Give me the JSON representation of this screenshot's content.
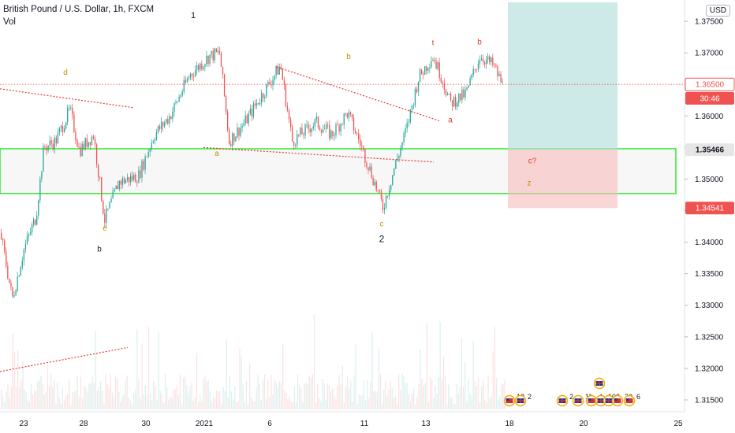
{
  "header": {
    "title": "British Pound / U.S. Dollar, 1h, FXCM",
    "indicator": "Vol",
    "currency_button": "USD"
  },
  "colors": {
    "up": "#26a69a",
    "down": "#ef5350",
    "zone": "#00e600",
    "target": "#b2dfdb",
    "stop": "#f8bbbb",
    "trend": "#e53935"
  },
  "chart_data": {
    "type": "candlestick",
    "title": "British Pound / U.S. Dollar, 1h, FXCM",
    "ylim": [
      1.3135,
      1.378
    ],
    "y_ticks": [
      "1.37500",
      "1.37000",
      "1.36500",
      "1.36000",
      "1.35500",
      "1.35000",
      "1.34500",
      "1.34000",
      "1.33500",
      "1.33000",
      "1.32500",
      "1.32000",
      "1.31500"
    ],
    "x_ticks": [
      "23",
      "28",
      "30",
      "2021",
      "6",
      "11",
      "13",
      "18",
      "20",
      "25"
    ],
    "price_badges": [
      {
        "label": "1.36500",
        "price": 1.365,
        "style": "outline"
      },
      {
        "label": "30:46",
        "price": 1.3628,
        "style": "filled"
      },
      {
        "label": "1.35466",
        "price": 1.35466,
        "style": "gray"
      },
      {
        "label": "1.34541",
        "price": 1.34541,
        "style": "filled"
      }
    ],
    "price_path": [
      {
        "x": 0,
        "y": 1.3415
      },
      {
        "x": 15,
        "y": 1.331
      },
      {
        "x": 30,
        "y": 1.339
      },
      {
        "x": 45,
        "y": 1.344
      },
      {
        "x": 55,
        "y": 1.355
      },
      {
        "x": 70,
        "y": 1.356
      },
      {
        "x": 88,
        "y": 1.361
      },
      {
        "x": 100,
        "y": 1.3545
      },
      {
        "x": 118,
        "y": 1.357
      },
      {
        "x": 132,
        "y": 1.3435
      },
      {
        "x": 150,
        "y": 1.3495
      },
      {
        "x": 175,
        "y": 1.3505
      },
      {
        "x": 195,
        "y": 1.357
      },
      {
        "x": 215,
        "y": 1.36
      },
      {
        "x": 240,
        "y": 1.3665
      },
      {
        "x": 265,
        "y": 1.3695
      },
      {
        "x": 278,
        "y": 1.37
      },
      {
        "x": 290,
        "y": 1.356
      },
      {
        "x": 310,
        "y": 1.359
      },
      {
        "x": 335,
        "y": 1.364
      },
      {
        "x": 355,
        "y": 1.368
      },
      {
        "x": 370,
        "y": 1.356
      },
      {
        "x": 400,
        "y": 1.359
      },
      {
        "x": 420,
        "y": 1.357
      },
      {
        "x": 440,
        "y": 1.3605
      },
      {
        "x": 455,
        "y": 1.356
      },
      {
        "x": 470,
        "y": 1.351
      },
      {
        "x": 485,
        "y": 1.3455
      },
      {
        "x": 500,
        "y": 1.352
      },
      {
        "x": 515,
        "y": 1.358
      },
      {
        "x": 530,
        "y": 1.366
      },
      {
        "x": 548,
        "y": 1.3695
      },
      {
        "x": 560,
        "y": 1.366
      },
      {
        "x": 570,
        "y": 1.362
      },
      {
        "x": 590,
        "y": 1.3635
      },
      {
        "x": 608,
        "y": 1.3695
      },
      {
        "x": 625,
        "y": 1.368
      },
      {
        "x": 638,
        "y": 1.3645
      }
    ],
    "zone": {
      "x_start": 0,
      "x_end": 857,
      "low": 1.3477,
      "high": 1.3548
    },
    "target_box": {
      "x_start": 644,
      "x_end": 783,
      "low": 1.3547,
      "high": 1.378
    },
    "stop_box": {
      "x_start": 644,
      "x_end": 783,
      "low": 1.3454,
      "high": 1.3547
    },
    "trendlines": [
      {
        "x1": 0,
        "y1": 1.3643,
        "x2": 170,
        "y2": 1.3613
      },
      {
        "x1": 258,
        "y1": 1.355,
        "x2": 550,
        "y2": 1.3527
      },
      {
        "x1": 350,
        "y1": 1.3678,
        "x2": 558,
        "y2": 1.3592
      },
      {
        "x1": 0,
        "y1": 1.3195,
        "x2": 162,
        "y2": 1.3233
      }
    ],
    "current_price_line": 1.365,
    "wave_labels": [
      {
        "text": "1",
        "x": 245,
        "y": 1.3755,
        "color": "#131722",
        "size": 11
      },
      {
        "text": "d",
        "x": 83,
        "y": 1.3665,
        "color": "#c59100",
        "size": 10
      },
      {
        "text": "b",
        "x": 442,
        "y": 1.369,
        "color": "#c59100",
        "size": 10
      },
      {
        "text": "a",
        "x": 275,
        "y": 1.3537,
        "color": "#c59100",
        "size": 10
      },
      {
        "text": "e",
        "x": 133,
        "y": 1.3418,
        "color": "#c59100",
        "size": 10
      },
      {
        "text": "b",
        "x": 126,
        "y": 1.3385,
        "color": "#131722",
        "size": 10
      },
      {
        "text": "c",
        "x": 484,
        "y": 1.3425,
        "color": "#c59100",
        "size": 10
      },
      {
        "text": "2",
        "x": 484,
        "y": 1.34,
        "color": "#131722",
        "size": 12
      },
      {
        "text": "t",
        "x": 549,
        "y": 1.3712,
        "color": "#e53935",
        "size": 10
      },
      {
        "text": "b",
        "x": 608,
        "y": 1.3713,
        "color": "#e53935",
        "size": 10
      },
      {
        "text": "a",
        "x": 571,
        "y": 1.359,
        "color": "#e53935",
        "size": 10
      },
      {
        "text": "c?",
        "x": 675,
        "y": 1.3525,
        "color": "#e53935",
        "size": 10
      },
      {
        "text": "z",
        "x": 671,
        "y": 1.349,
        "color": "#c59100",
        "size": 10
      }
    ],
    "event_markers": [
      {
        "x": 646,
        "label": "12",
        "kind": "US"
      },
      {
        "x": 660,
        "label": "2",
        "kind": "UK"
      },
      {
        "x": 713,
        "label": "2",
        "kind": "UK"
      },
      {
        "x": 733,
        "label": "11",
        "kind": "UK"
      },
      {
        "x": 750,
        "label": "4",
        "kind": "US"
      },
      {
        "x": 762,
        "label": "10",
        "kind": "UK"
      },
      {
        "x": 772,
        "label": "3",
        "kind": "UK"
      },
      {
        "x": 783,
        "label": "30",
        "kind": "US"
      },
      {
        "x": 798,
        "label": "6",
        "kind": "US"
      }
    ],
    "extra_marker": {
      "x": 760,
      "kind": "UK"
    }
  }
}
